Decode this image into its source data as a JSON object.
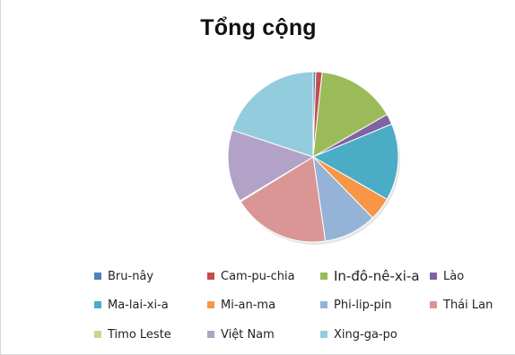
{
  "chart_data": {
    "type": "pie",
    "title": "Tổng cộng",
    "legend_position": "bottom",
    "series": [
      {
        "values": [
          {
            "label": "Bru-nây",
            "value": 0.5,
            "color": "#4f81bd"
          },
          {
            "label": "Cam-pu-chia",
            "value": 1.2,
            "color": "#c0504d"
          },
          {
            "label": "In-đô-nê-xi-a",
            "value": 15.0,
            "color": "#9bbb59"
          },
          {
            "label": "Lào",
            "value": 2.0,
            "color": "#8064a2"
          },
          {
            "label": "Ma-lai-xi-a",
            "value": 14.6,
            "color": "#4bacc6"
          },
          {
            "label": "Mi-an-ma",
            "value": 4.4,
            "color": "#f79646"
          },
          {
            "label": "Phi-lip-pin",
            "value": 10.0,
            "color": "#95b3d7"
          },
          {
            "label": "Thái Lan",
            "value": 18.5,
            "color": "#d99694"
          },
          {
            "label": "Timo Leste",
            "value": 0.2,
            "color": "#c3d69b"
          },
          {
            "label": "Việt Nam",
            "value": 13.7,
            "color": "#b3a2c7"
          },
          {
            "label": "Xing-ga-po",
            "value": 19.9,
            "color": "#93cddd"
          }
        ]
      }
    ]
  }
}
